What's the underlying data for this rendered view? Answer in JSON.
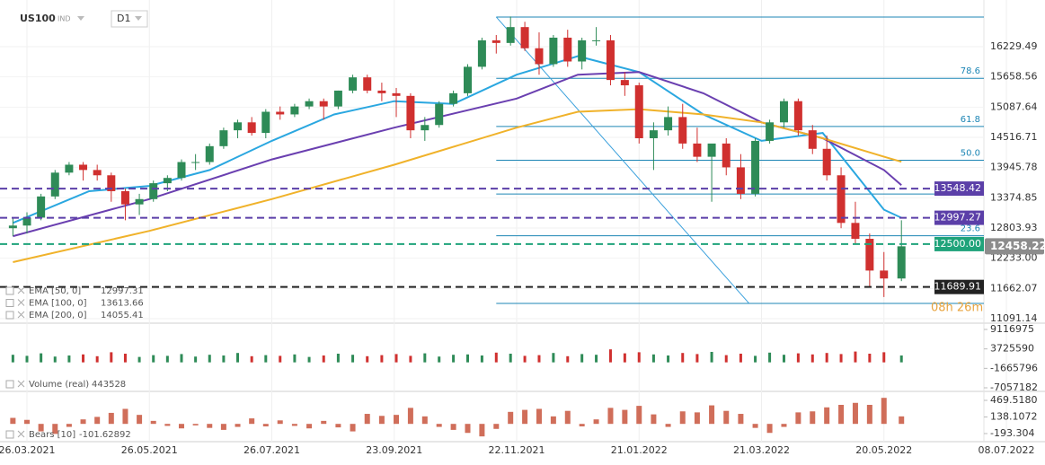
{
  "header": {
    "symbol": "US100",
    "market": "IND",
    "timeframe": "D1",
    "countdown": "08h 26m"
  },
  "chart_data": {
    "type": "candlestick",
    "x": [
      "19.03.2021",
      "26.03.2021",
      "02.04.2021",
      "09.04.2021",
      "16.04.2021",
      "23.04.2021",
      "30.04.2021",
      "07.05.2021",
      "14.05.2021",
      "21.05.2021",
      "28.05.2021",
      "04.06.2021",
      "11.06.2021",
      "18.06.2021",
      "25.06.2021",
      "02.07.2021",
      "09.07.2021",
      "16.07.2021",
      "23.07.2021",
      "30.07.2021",
      "06.08.2021",
      "13.08.2021",
      "20.08.2021",
      "27.08.2021",
      "03.09.2021",
      "10.09.2021",
      "17.09.2021",
      "24.09.2021",
      "01.10.2021",
      "08.10.2021",
      "15.10.2021",
      "22.10.2021",
      "29.10.2021",
      "05.11.2021",
      "12.11.2021",
      "19.11.2021",
      "26.11.2021",
      "03.12.2021",
      "10.12.2021",
      "17.12.2021",
      "24.12.2021",
      "31.12.2021",
      "07.01.2022",
      "14.01.2022",
      "21.01.2022",
      "28.01.2022",
      "04.02.2022",
      "11.02.2022",
      "18.02.2022",
      "25.02.2022",
      "04.03.2022",
      "11.03.2022",
      "18.03.2022",
      "25.03.2022",
      "01.04.2022",
      "08.04.2022",
      "15.04.2022",
      "22.04.2022",
      "29.04.2022",
      "06.05.2022",
      "13.05.2022",
      "20.05.2022",
      "27.05.2022"
    ],
    "open": [
      12800,
      12850,
      13000,
      13400,
      13850,
      14000,
      13900,
      13800,
      13500,
      13250,
      13350,
      13650,
      13750,
      14050,
      14050,
      14350,
      14650,
      14800,
      14600,
      15000,
      14950,
      15100,
      15200,
      15100,
      15400,
      15650,
      15400,
      15350,
      15300,
      14650,
      14750,
      15150,
      15350,
      15850,
      16350,
      16300,
      16600,
      16200,
      15900,
      16400,
      15950,
      16350,
      16350,
      15600,
      15500,
      14500,
      14650,
      14900,
      14400,
      14150,
      14400,
      13950,
      13450,
      14450,
      14800,
      15200,
      14650,
      14300,
      13800,
      12900,
      12600,
      12000,
      11850
    ],
    "high": [
      13000,
      13100,
      13450,
      13900,
      14050,
      14050,
      14000,
      13850,
      13550,
      13450,
      13700,
      13800,
      14100,
      14200,
      14400,
      14700,
      14850,
      14900,
      15050,
      15100,
      15150,
      15250,
      15250,
      15400,
      15700,
      15700,
      15550,
      15450,
      15350,
      14900,
      15200,
      15400,
      15900,
      16400,
      16450,
      16800,
      16700,
      16500,
      16450,
      16550,
      16400,
      16600,
      16450,
      15750,
      15550,
      14800,
      15100,
      15150,
      14700,
      14350,
      14500,
      14200,
      14500,
      14850,
      15250,
      15250,
      14750,
      14550,
      13950,
      13300,
      12700,
      12350,
      12950
    ],
    "low": [
      12650,
      12700,
      12950,
      13350,
      13800,
      13700,
      13700,
      13300,
      12950,
      13050,
      13300,
      13500,
      13700,
      13900,
      14000,
      14300,
      14500,
      14550,
      14500,
      14850,
      14900,
      15050,
      14850,
      15050,
      15350,
      15350,
      15200,
      14900,
      14500,
      14450,
      14700,
      15100,
      15300,
      15800,
      16100,
      16250,
      16150,
      15700,
      15850,
      15850,
      15800,
      16250,
      15500,
      15300,
      14400,
      13900,
      14550,
      14300,
      14050,
      13300,
      13800,
      13350,
      13400,
      14400,
      14700,
      14550,
      14200,
      13700,
      12800,
      12500,
      11700,
      11500,
      11800
    ],
    "close": [
      12850,
      13000,
      13400,
      13850,
      14000,
      13900,
      13800,
      13500,
      13250,
      13350,
      13650,
      13750,
      14050,
      14050,
      14350,
      14650,
      14800,
      14600,
      15000,
      14950,
      15100,
      15200,
      15100,
      15400,
      15650,
      15400,
      15350,
      15300,
      14650,
      14750,
      15150,
      15350,
      15850,
      16350,
      16300,
      16600,
      16200,
      15900,
      16400,
      15950,
      16350,
      16350,
      15600,
      15500,
      14500,
      14650,
      14900,
      14400,
      14150,
      14400,
      13950,
      13450,
      14450,
      14800,
      15200,
      14650,
      14300,
      13800,
      12900,
      12600,
      12000,
      11850,
      12458.22
    ],
    "up_color": "#2e8b57",
    "down_color": "#d0302f",
    "xticks": [
      "26.03.2021",
      "26.05.2021",
      "26.07.2021",
      "23.09.2021",
      "22.11.2021",
      "21.01.2022",
      "21.03.2022",
      "20.05.2022",
      "08.07.2022"
    ],
    "ylim": [
      11006,
      16976
    ],
    "yticks": [
      16229.49,
      15658.56,
      15087.64,
      14516.71,
      13945.78,
      13374.85,
      12803.93,
      {
        "value": 12233,
        "label": "12233.00"
      },
      11662.07,
      11091.14
    ],
    "series": [
      {
        "name": "EMA [50, 0]",
        "color": "#2aa7e0",
        "x": [
          "19.03.2021",
          "26.04.2021",
          "26.05.2021",
          "25.06.2021",
          "26.07.2021",
          "25.08.2021",
          "23.09.2021",
          "22.10.2021",
          "22.11.2021",
          "22.12.2021",
          "21.01.2022",
          "21.02.2022",
          "21.03.2022",
          "20.04.2022",
          "20.05.2022",
          "27.05.2022"
        ],
        "values": [
          12900,
          13500,
          13600,
          13900,
          14450,
          14950,
          15200,
          15150,
          15700,
          16050,
          15750,
          14950,
          14450,
          14600,
          13150,
          12997.31
        ]
      },
      {
        "name": "EMA [100, 0]",
        "color": "#6a3fb0",
        "x": [
          "19.03.2021",
          "26.05.2021",
          "26.07.2021",
          "23.09.2021",
          "22.11.2021",
          "22.12.2021",
          "21.01.2022",
          "21.02.2022",
          "21.03.2022",
          "20.04.2022",
          "20.05.2022",
          "27.05.2022"
        ],
        "values": [
          12650,
          13350,
          14100,
          14700,
          15250,
          15700,
          15750,
          15350,
          14800,
          14500,
          13900,
          13613.66
        ]
      },
      {
        "name": "EMA [200, 0]",
        "color": "#f0b22a",
        "x": [
          "19.03.2021",
          "26.05.2021",
          "26.07.2021",
          "23.09.2021",
          "22.11.2021",
          "22.12.2021",
          "21.01.2022",
          "21.02.2022",
          "21.03.2022",
          "20.04.2022",
          "20.05.2022",
          "27.05.2022"
        ],
        "values": [
          12160,
          12750,
          13350,
          14000,
          14700,
          15000,
          15050,
          14950,
          14800,
          14500,
          14150,
          14055.41
        ]
      }
    ],
    "levels": [
      {
        "value": 13548.42,
        "color": "#5b3fa8"
      },
      {
        "value": 12997.27,
        "color": "#5b3fa8"
      },
      {
        "value": 12500,
        "label": "12500.00",
        "color": "#1fa37a"
      },
      {
        "value": 11689.91,
        "color": "#222222"
      }
    ],
    "fibonacci": {
      "start": "12.11.2021",
      "high": 16790,
      "low": 11380,
      "color": "#1d86b5",
      "levels": [
        78.6,
        61.8,
        {
          "value": 50,
          "label": "50.0"
        },
        38.2,
        23.6
      ]
    },
    "trendline_end": "15.03.2022",
    "panes": [
      {
        "name": "Volume (real)",
        "legend_value": 443528,
        "values": [
          2100000,
          1800000,
          2500000,
          1600000,
          1900000,
          2200000,
          1700000,
          2800000,
          2400000,
          1500000,
          2000000,
          1800000,
          2300000,
          1600000,
          2100000,
          1900000,
          2600000,
          1700000,
          2000000,
          1800000,
          2200000,
          1500000,
          1900000,
          2400000,
          2100000,
          1700000,
          2000000,
          2300000,
          1800000,
          2500000,
          1600000,
          2100000,
          2200000,
          1900000,
          2700000,
          2400000,
          1800000,
          2000000,
          2600000,
          1700000,
          2300000,
          2100000,
          3600000,
          2500000,
          2800000,
          2200000,
          1900000,
          2600000,
          2300000,
          2900000,
          2000000,
          2400000,
          1800000,
          2700000,
          2100000,
          2500000,
          2200000,
          2600000,
          2300000,
          3000000,
          2400000,
          2800000,
          1900000
        ],
        "ylim": [
          -8050000,
          10860000
        ],
        "yticks": [
          9116975,
          3725590,
          -1665796,
          -7057182
        ]
      },
      {
        "name": "Bears [10]",
        "legend_value": -101.62892,
        "color": "#c8553d",
        "values": [
          120,
          80,
          -150,
          -200,
          -60,
          90,
          140,
          220,
          300,
          180,
          60,
          -40,
          -90,
          -30,
          -80,
          -120,
          -60,
          110,
          -50,
          70,
          -40,
          -90,
          60,
          -70,
          -150,
          200,
          160,
          180,
          320,
          150,
          -60,
          -120,
          -180,
          -250,
          -100,
          240,
          280,
          300,
          150,
          260,
          -50,
          90,
          320,
          280,
          360,
          190,
          -60,
          250,
          230,
          370,
          260,
          200,
          -80,
          -180,
          -60,
          230,
          250,
          330,
          380,
          420,
          380,
          520,
          150
        ],
        "ylim": [
          -355,
          649
        ],
        "yticks": [
          {
            "value": 469.518,
            "label": "469.5180"
          },
          138.1072,
          -193.304
        ]
      }
    ]
  }
}
